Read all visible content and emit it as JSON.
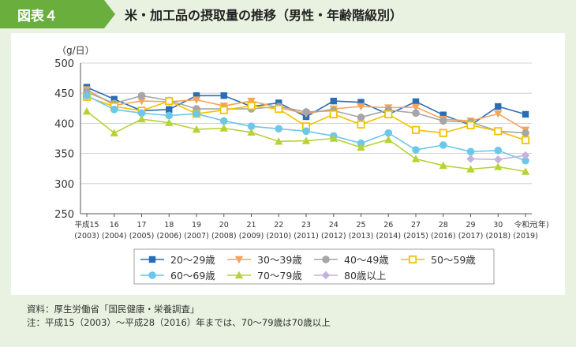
{
  "header": {
    "badge": "図表４",
    "title": "米・加工品の摂取量の推移（男性・年齢階級別）"
  },
  "colors": {
    "badge_bg": "#6aaf3d",
    "page_bg": "#e9f2e0"
  },
  "chart_data": {
    "type": "line",
    "ylabel": "（g/日）",
    "xlabel": "(年)",
    "ylim": [
      250,
      500
    ],
    "yticks": [
      250,
      300,
      350,
      400,
      450,
      500
    ],
    "grid": "horizontal",
    "categories": [
      {
        "top": "平成15",
        "bottom": "(2003)"
      },
      {
        "top": "16",
        "bottom": "(2004)"
      },
      {
        "top": "17",
        "bottom": "(2005)"
      },
      {
        "top": "18",
        "bottom": "(2006)"
      },
      {
        "top": "19",
        "bottom": "(2007)"
      },
      {
        "top": "20",
        "bottom": "(2008)"
      },
      {
        "top": "21",
        "bottom": "(2009)"
      },
      {
        "top": "22",
        "bottom": "(2010)"
      },
      {
        "top": "23",
        "bottom": "(2011)"
      },
      {
        "top": "24",
        "bottom": "(2012)"
      },
      {
        "top": "25",
        "bottom": "(2013)"
      },
      {
        "top": "26",
        "bottom": "(2014)"
      },
      {
        "top": "27",
        "bottom": "(2015)"
      },
      {
        "top": "28",
        "bottom": "(2016)"
      },
      {
        "top": "29",
        "bottom": "(2017)"
      },
      {
        "top": "30",
        "bottom": "(2018)"
      },
      {
        "top": "令和元",
        "bottom": "(2019)"
      }
    ],
    "legend_position": "bottom",
    "series": [
      {
        "name": "20〜29歳",
        "color": "#2a6db5",
        "marker": "square",
        "values": [
          460,
          440,
          421,
          423,
          446,
          446,
          428,
          434,
          411,
          437,
          435,
          415,
          436,
          414,
          397,
          428,
          415
        ]
      },
      {
        "name": "30〜39歳",
        "color": "#f4a55c",
        "marker": "triangle-down",
        "values": [
          456,
          430,
          437,
          436,
          439,
          429,
          437,
          426,
          416,
          424,
          428,
          426,
          427,
          407,
          404,
          416,
          389
        ]
      },
      {
        "name": "40〜49歳",
        "color": "#a6a6a6",
        "marker": "circle",
        "values": [
          452,
          433,
          446,
          438,
          424,
          424,
          424,
          428,
          419,
          421,
          410,
          422,
          417,
          404,
          402,
          387,
          384
        ]
      },
      {
        "name": "50〜59歳",
        "color": "#f2c200",
        "marker": "square-open",
        "values": [
          444,
          428,
          421,
          437,
          416,
          422,
          429,
          424,
          395,
          415,
          398,
          415,
          389,
          384,
          397,
          387,
          372
        ]
      },
      {
        "name": "60〜69歳",
        "color": "#6cc7ea",
        "marker": "circle",
        "values": [
          446,
          423,
          417,
          413,
          416,
          404,
          395,
          391,
          387,
          379,
          367,
          384,
          356,
          364,
          353,
          355,
          338
        ]
      },
      {
        "name": "70〜79歳",
        "color": "#b6d334",
        "marker": "triangle",
        "values": [
          420,
          384,
          407,
          401,
          390,
          392,
          385,
          370,
          371,
          375,
          360,
          373,
          341,
          330,
          324,
          328,
          320
        ]
      },
      {
        "name": "80歳以上",
        "color": "#c6b2da",
        "marker": "diamond",
        "values": [
          null,
          null,
          null,
          null,
          null,
          null,
          null,
          null,
          null,
          null,
          null,
          null,
          null,
          null,
          341,
          340,
          347
        ]
      }
    ]
  },
  "notes": {
    "source": "資料：厚生労働省「国民健康・栄養調査」",
    "note": "注：平成15（2003）〜平成28（2016）年までは、70〜79歳は70歳以上"
  }
}
